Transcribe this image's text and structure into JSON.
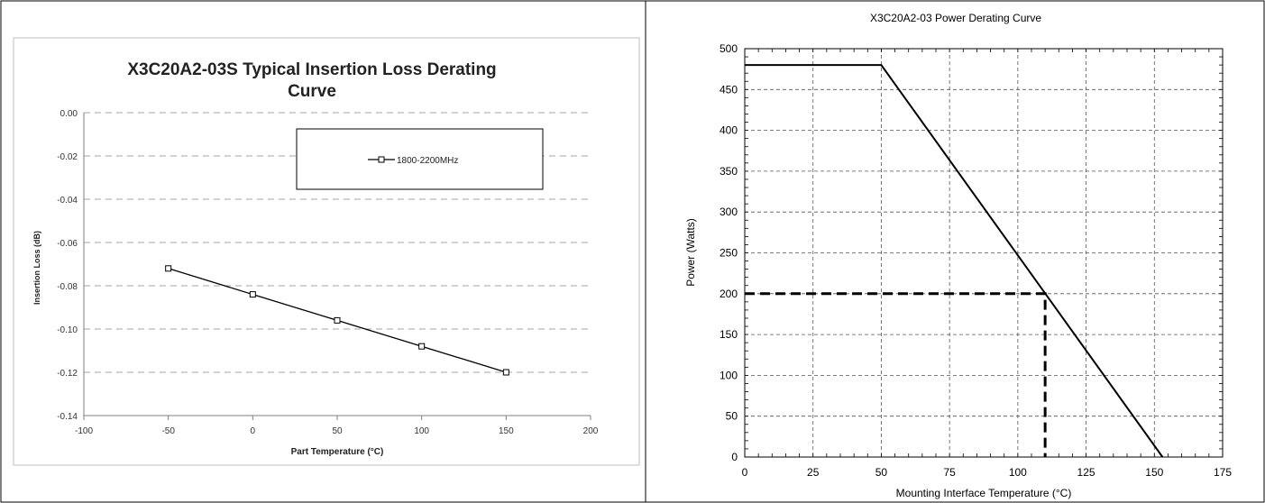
{
  "chart_data": [
    {
      "type": "line",
      "title": "X3C20A2-03S Typical Insertion Loss Derating Curve",
      "title_lines": [
        "X3C20A2-03S Typical Insertion Loss Derating",
        "Curve"
      ],
      "xlabel": "Part Temperature (°C)",
      "ylabel": "Insertion Loss (dB)",
      "xlim": [
        -100,
        200
      ],
      "ylim": [
        -0.14,
        0.0
      ],
      "x_ticks": [
        -100,
        -50,
        0,
        50,
        100,
        150,
        200
      ],
      "x_tick_labels": [
        "-100",
        "-50",
        "0",
        "50",
        "100",
        "150",
        "200"
      ],
      "y_ticks": [
        0.0,
        -0.02,
        -0.04,
        -0.06,
        -0.08,
        -0.1,
        -0.12,
        -0.14
      ],
      "y_tick_labels": [
        "0.00",
        "-0.02",
        "-0.04",
        "-0.06",
        "-0.08",
        "-0.10",
        "-0.12",
        "-0.14"
      ],
      "grid": "horizontal dashed",
      "legend_position": "top-right",
      "series": [
        {
          "name": "1800-2200MHz",
          "color": "#000000",
          "marker": "square",
          "x": [
            -50,
            0,
            50,
            100,
            150
          ],
          "y": [
            -0.072,
            -0.084,
            -0.096,
            -0.108,
            -0.12
          ]
        }
      ]
    },
    {
      "type": "line",
      "title": "X3C20A2-03 Power Derating Curve",
      "xlabel": "Mounting Interface Temperature (°C)",
      "ylabel": "Power (Watts)",
      "xlim": [
        0,
        175
      ],
      "ylim": [
        0,
        500
      ],
      "x_ticks": [
        0,
        25,
        50,
        75,
        100,
        125,
        150,
        175
      ],
      "x_tick_labels": [
        "0",
        "25",
        "50",
        "75",
        "100",
        "125",
        "150",
        "175"
      ],
      "y_ticks": [
        0,
        50,
        100,
        150,
        200,
        250,
        300,
        350,
        400,
        450,
        500
      ],
      "y_tick_labels": [
        "0",
        "50",
        "100",
        "150",
        "200",
        "250",
        "300",
        "350",
        "400",
        "450",
        "500"
      ],
      "grid": "dashed both",
      "series": [
        {
          "color": "#000000",
          "style": "solid",
          "x": [
            0,
            50,
            153
          ],
          "y": [
            480,
            480,
            0
          ]
        },
        {
          "color": "#000000",
          "style": "dashed",
          "x": [
            0,
            110,
            110
          ],
          "y": [
            200,
            200,
            0
          ]
        }
      ]
    }
  ]
}
